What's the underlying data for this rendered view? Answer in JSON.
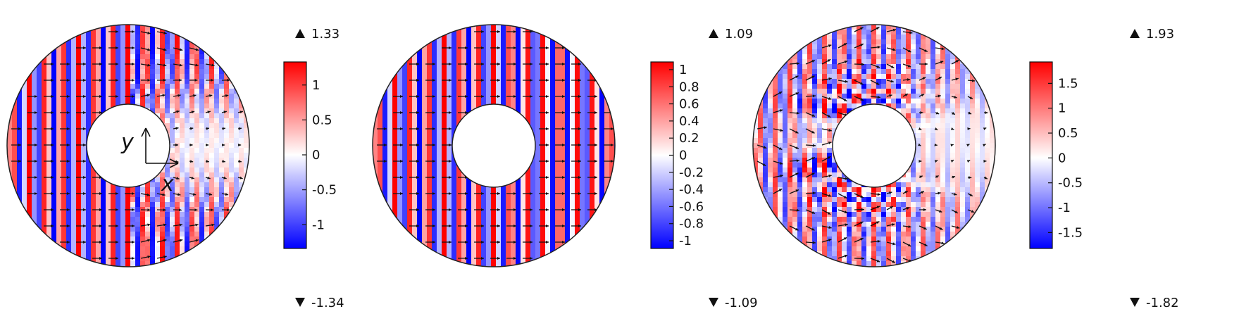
{
  "panels": [
    {
      "max_label": "1.33",
      "min_label": "-1.34",
      "range": [
        -1.34,
        1.33
      ],
      "ticks": [
        "1",
        "0.5",
        "0",
        "-0.5",
        "-1"
      ],
      "tick_values": [
        1,
        0.5,
        0,
        -0.5,
        -1
      ],
      "pattern": "cloak",
      "axis_labels": {
        "x": "x",
        "y": "y"
      }
    },
    {
      "max_label": "1.09",
      "min_label": "-1.09",
      "range": [
        -1.09,
        1.09
      ],
      "ticks": [
        "1",
        "0.8",
        "0.6",
        "0.4",
        "0.2",
        "0",
        "-0.2",
        "-0.4",
        "-0.6",
        "-0.8",
        "-1"
      ],
      "tick_values": [
        1,
        0.8,
        0.6,
        0.4,
        0.2,
        0,
        -0.2,
        -0.4,
        -0.6,
        -0.8,
        -1
      ],
      "pattern": "uniform"
    },
    {
      "max_label": "1.93",
      "min_label": "-1.82",
      "range": [
        -1.82,
        1.93
      ],
      "ticks": [
        "1.5",
        "1",
        "0.5",
        "0",
        "-0.5",
        "-1",
        "-1.5"
      ],
      "tick_values": [
        1.5,
        1,
        0.5,
        0,
        -0.5,
        -1,
        -1.5
      ],
      "pattern": "scatter"
    }
  ],
  "colors": {
    "positive": "#ff0000",
    "negative": "#0000ff",
    "zero": "#ffffff",
    "outline": "#222222"
  },
  "icons": {
    "max_marker": "triangle-up-icon",
    "min_marker": "triangle-down-icon"
  }
}
